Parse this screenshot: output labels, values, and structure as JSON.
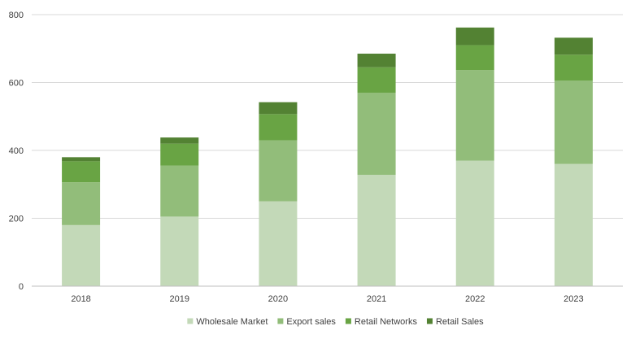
{
  "chart_data": {
    "type": "bar",
    "stacked": true,
    "title": "",
    "xlabel": "",
    "ylabel": "",
    "categories": [
      "2018",
      "2019",
      "2020",
      "2021",
      "2022",
      "2023"
    ],
    "ylim": [
      0,
      800
    ],
    "yticks": [
      0,
      200,
      400,
      600,
      800
    ],
    "grid": true,
    "legend_position": "bottom",
    "series": [
      {
        "name": "Wholesale Market",
        "color": "#c3d9b8",
        "values": [
          180,
          205,
          250,
          328,
          370,
          360
        ]
      },
      {
        "name": "Export sales",
        "color": "#92bd7a",
        "values": [
          126,
          150,
          180,
          242,
          267,
          246
        ]
      },
      {
        "name": "Retail Networks",
        "color": "#69a444",
        "values": [
          62,
          65,
          77,
          75,
          73,
          76
        ]
      },
      {
        "name": "Retail Sales",
        "color": "#538233",
        "values": [
          12,
          18,
          35,
          40,
          52,
          50
        ]
      }
    ]
  }
}
